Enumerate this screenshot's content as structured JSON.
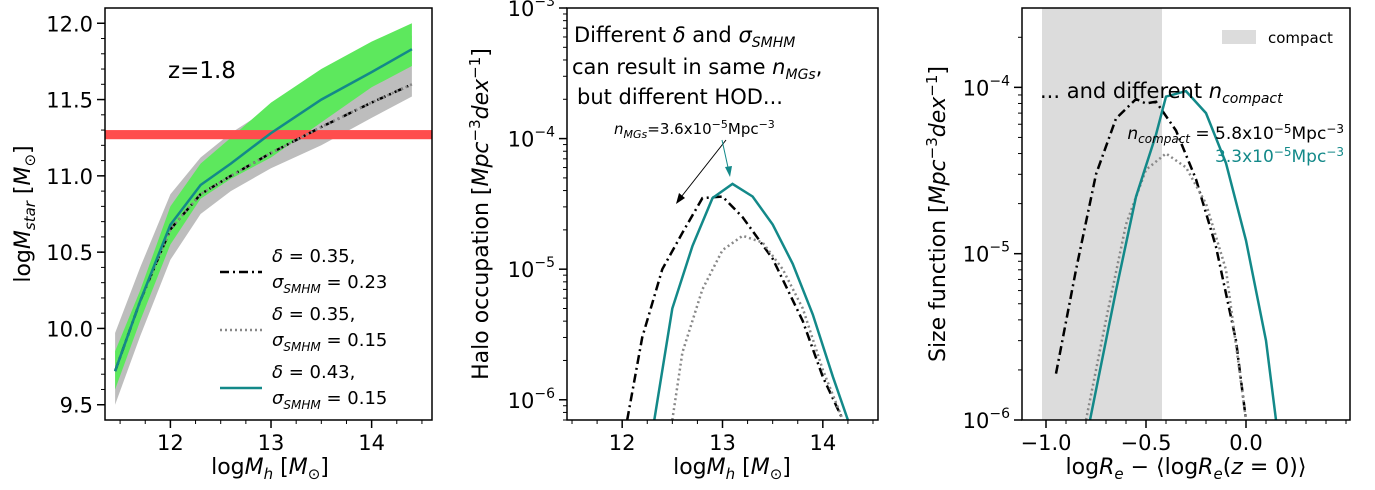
{
  "chart_data": [
    {
      "type": "line",
      "xlabel": "logM_h [M_⊙]",
      "ylabel": "logM_star [M_⊙]",
      "xlim": [
        11.35,
        14.6
      ],
      "ylim": [
        9.4,
        12.1
      ],
      "xticks": [
        12,
        13,
        14
      ],
      "yticks": [
        9.5,
        10.0,
        10.5,
        11.0,
        11.5,
        12.0
      ],
      "ytick_labels": [
        "9.5",
        "10.0",
        "10.5",
        "11.0",
        "11.5",
        "12.0"
      ],
      "annotation": "z=1.8",
      "hband": {
        "y": [
          11.24,
          11.3
        ],
        "color": "#ff4d4d"
      },
      "bands": [
        {
          "color": "#bdbdbd",
          "x": [
            11.45,
            11.7,
            12.0,
            12.3,
            12.6,
            13.0,
            13.5,
            14.0,
            14.4
          ],
          "lower": [
            9.5,
            9.95,
            10.45,
            10.75,
            10.9,
            11.05,
            11.2,
            11.38,
            11.52
          ],
          "upper": [
            9.97,
            10.4,
            10.88,
            11.12,
            11.28,
            11.45,
            11.6,
            11.75,
            11.92
          ]
        },
        {
          "color": "#5de85d",
          "x": [
            11.45,
            11.7,
            12.0,
            12.3,
            12.6,
            13.0,
            13.5,
            14.0,
            14.4
          ],
          "lower": [
            9.6,
            10.05,
            10.55,
            10.85,
            10.98,
            11.12,
            11.35,
            11.58,
            11.72
          ],
          "upper": [
            9.85,
            10.25,
            10.8,
            11.08,
            11.25,
            11.48,
            11.7,
            11.88,
            12.0
          ]
        }
      ],
      "series": [
        {
          "name": "δ = 0.35, σ_SMHM = 0.23",
          "color": "#000000",
          "dash": "dashdot",
          "x": [
            11.45,
            11.7,
            12.0,
            12.3,
            12.6,
            13.0,
            13.5,
            14.0,
            14.4
          ],
          "values": [
            9.72,
            10.18,
            10.65,
            10.88,
            11.0,
            11.15,
            11.32,
            11.48,
            11.6
          ]
        },
        {
          "name": "δ = 0.35, σ_SMHM = 0.15",
          "color": "#888888",
          "dash": "dotted",
          "x": [
            11.45,
            11.7,
            12.0,
            12.3,
            12.6,
            13.0,
            13.5,
            14.0,
            14.4
          ],
          "values": [
            9.72,
            10.18,
            10.65,
            10.88,
            11.0,
            11.15,
            11.32,
            11.48,
            11.6
          ]
        },
        {
          "name": "δ = 0.43, σ_SMHM = 0.15",
          "color": "#138989",
          "dash": "solid",
          "x": [
            11.45,
            11.7,
            12.0,
            12.3,
            12.6,
            13.0,
            13.5,
            14.0,
            14.4
          ],
          "values": [
            9.72,
            10.18,
            10.68,
            10.94,
            11.08,
            11.28,
            11.5,
            11.68,
            11.83
          ]
        }
      ],
      "legend": [
        {
          "line1": "δ = 0.35,",
          "line2": "σ_SMHM = 0.23",
          "color": "#000000",
          "dash": "dashdot"
        },
        {
          "line1": "δ = 0.35,",
          "line2": "σ_SMHM = 0.15",
          "color": "#888888",
          "dash": "dotted"
        },
        {
          "line1": "δ = 0.43,",
          "line2": "σ_SMHM = 0.15",
          "color": "#138989",
          "dash": "solid"
        }
      ]
    },
    {
      "type": "line",
      "yscale": "log",
      "xlabel": "logM_h [M_⊙]",
      "ylabel": "Halo occupation [Mpc^-3 dex^-1]",
      "xlim": [
        11.45,
        14.55
      ],
      "ylim": [
        7e-07,
        0.001
      ],
      "xticks": [
        12,
        13,
        14
      ],
      "yticks_exp": [
        -6,
        -5,
        -4,
        -3
      ],
      "text_lines": [
        "Different δ and σ_SMHM",
        "can result in same n_MGs,",
        "but different HOD..."
      ],
      "n_label": "n_MGs=3.6x10^-5Mpc^-3",
      "series": [
        {
          "name": "δ = 0.35, σ_SMHM = 0.23",
          "color": "#000000",
          "dash": "dashdot",
          "x": [
            12.05,
            12.2,
            12.4,
            12.6,
            12.8,
            13.0,
            13.2,
            13.5,
            13.8,
            14.0,
            14.2
          ],
          "values": [
            7e-07,
            3e-06,
            1e-05,
            1.9e-05,
            3.5e-05,
            3.6e-05,
            2.5e-05,
            1.2e-05,
            4e-06,
            1.5e-06,
            7e-07
          ]
        },
        {
          "name": "δ = 0.35, σ_SMHM = 0.15",
          "color": "#888888",
          "dash": "dotted",
          "x": [
            12.5,
            12.6,
            12.8,
            13.0,
            13.2,
            13.4,
            13.6,
            13.8,
            14.0,
            14.2
          ],
          "values": [
            7e-07,
            2.3e-06,
            7e-06,
            1.4e-05,
            1.8e-05,
            1.6e-05,
            1e-05,
            5e-06,
            1.7e-06,
            7e-07
          ]
        },
        {
          "name": "δ = 0.43, σ_SMHM = 0.15",
          "color": "#138989",
          "dash": "solid",
          "x": [
            12.32,
            12.5,
            12.7,
            12.9,
            13.1,
            13.3,
            13.5,
            13.7,
            13.9,
            14.1,
            14.25
          ],
          "values": [
            7e-07,
            5e-06,
            1.5e-05,
            3.5e-05,
            4.5e-05,
            3.6e-05,
            2.2e-05,
            1.1e-05,
            4.5e-06,
            1.5e-06,
            7e-07
          ]
        }
      ]
    },
    {
      "type": "line",
      "yscale": "log",
      "xlabel": "logR_e − ⟨logR_e(z = 0)⟩",
      "ylabel": "Size function [Mpc^-3 dex^-1]",
      "xlim": [
        -1.12,
        0.52
      ],
      "ylim": [
        1e-06,
        0.0003
      ],
      "xticks": [
        -1.0,
        -0.5,
        0.0
      ],
      "xtick_labels": [
        "−1.0",
        "−0.5",
        "0.0"
      ],
      "yticks_exp": [
        -6,
        -5,
        -4,
        -3
      ],
      "shade": {
        "x": [
          -1.02,
          -0.42
        ],
        "color": "#dcdcdc",
        "legend": "compact"
      },
      "text_main": "... and different n_compact",
      "n_label_black": "n_compact = 5.8x10^-5Mpc^-3",
      "n_label_teal": "3.3x10^-5Mpc^-3",
      "series": [
        {
          "name": "δ = 0.35, σ_SMHM = 0.23",
          "color": "#000000",
          "dash": "dashdot",
          "x": [
            -0.95,
            -0.85,
            -0.75,
            -0.65,
            -0.55,
            -0.5,
            -0.45,
            -0.35,
            -0.25,
            -0.15,
            -0.05,
            0.0
          ],
          "values": [
            1.9e-06,
            8e-06,
            3e-05,
            6.5e-05,
            8.5e-05,
            8e-05,
            8.2e-05,
            5.5e-05,
            2.8e-05,
            1.1e-05,
            3e-06,
            1e-06
          ]
        },
        {
          "name": "δ = 0.35, σ_SMHM = 0.15",
          "color": "#888888",
          "dash": "dotted",
          "x": [
            -0.8,
            -0.7,
            -0.6,
            -0.5,
            -0.4,
            -0.3,
            -0.2,
            -0.1,
            0.0
          ],
          "values": [
            1e-06,
            4e-06,
            1.5e-05,
            3.2e-05,
            4e-05,
            3.3e-05,
            2e-05,
            8e-06,
            1e-06
          ]
        },
        {
          "name": "δ = 0.43, σ_SMHM = 0.15",
          "color": "#138989",
          "dash": "solid",
          "x": [
            -0.78,
            -0.65,
            -0.55,
            -0.45,
            -0.4,
            -0.3,
            -0.2,
            -0.1,
            0.0,
            0.1,
            0.15
          ],
          "values": [
            1e-06,
            6e-06,
            2.2e-05,
            5.2e-05,
            8.8e-05,
            9.5e-05,
            7e-05,
            3.5e-05,
            1.2e-05,
            3e-06,
            1e-06
          ]
        }
      ]
    }
  ]
}
